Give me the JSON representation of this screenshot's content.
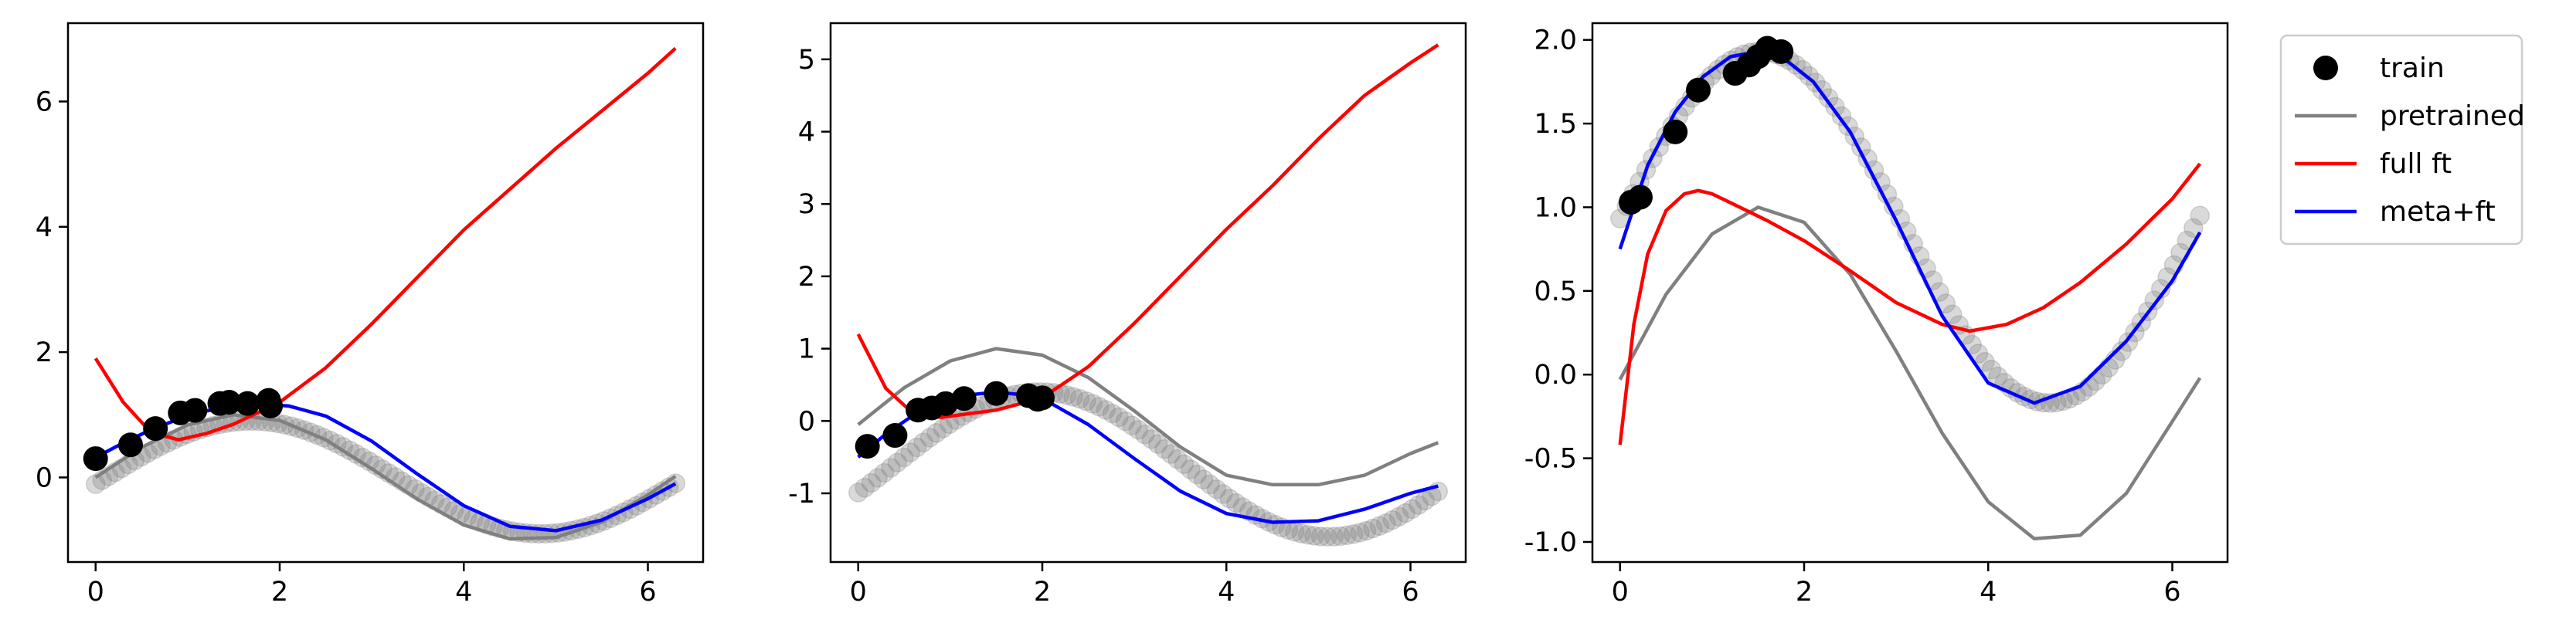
{
  "colors": {
    "train": "#000000",
    "test": "#808080",
    "pretrained": "#808080",
    "full_ft": "#ff0000",
    "meta_ft": "#0000ff"
  },
  "legend": {
    "placement": "outside-right",
    "entries": [
      {
        "label": "train",
        "kind": "marker",
        "color": "#000000"
      },
      {
        "label": "pretrained",
        "kind": "line",
        "color": "#808080"
      },
      {
        "label": "full ft",
        "kind": "line",
        "color": "#ff0000"
      },
      {
        "label": "meta+ft",
        "kind": "line",
        "color": "#0000ff"
      }
    ]
  },
  "chart_data": [
    {
      "type": "line",
      "title": "",
      "xlabel": "",
      "ylabel": "",
      "xlim": [
        -0.3,
        6.6
      ],
      "ylim": [
        -1.35,
        7.25
      ],
      "xticks": [
        0,
        2,
        4,
        6
      ],
      "yticks": [
        0,
        2,
        4,
        6
      ],
      "grid": false,
      "train_points": {
        "x": [
          0.0,
          0.38,
          0.65,
          0.92,
          1.08,
          1.35,
          1.45,
          1.65,
          1.88,
          1.9
        ],
        "y": [
          0.3,
          0.52,
          0.78,
          1.03,
          1.07,
          1.18,
          1.2,
          1.18,
          1.23,
          1.14
        ]
      },
      "test_amplitude": 0.9,
      "test_phase": 0.12,
      "test_offset": 0.0,
      "series": [
        {
          "name": "pretrained",
          "x": [
            0.0,
            0.5,
            1.0,
            1.5,
            2.0,
            2.5,
            3.0,
            3.5,
            4.0,
            4.5,
            5.0,
            5.5,
            6.0,
            6.3
          ],
          "y": [
            0.0,
            0.48,
            0.84,
            1.0,
            0.91,
            0.6,
            0.14,
            -0.35,
            -0.76,
            -0.98,
            -0.96,
            -0.71,
            -0.28,
            0.02
          ]
        },
        {
          "name": "full ft",
          "x": [
            0.0,
            0.3,
            0.6,
            0.9,
            1.2,
            1.5,
            2.0,
            2.5,
            3.0,
            3.5,
            4.0,
            4.5,
            5.0,
            5.5,
            6.0,
            6.3
          ],
          "y": [
            1.9,
            1.2,
            0.72,
            0.6,
            0.7,
            0.85,
            1.2,
            1.75,
            2.45,
            3.2,
            3.95,
            4.6,
            5.25,
            5.85,
            6.45,
            6.85
          ]
        },
        {
          "name": "meta+ft",
          "x": [
            0.0,
            0.3,
            0.6,
            0.9,
            1.2,
            1.5,
            1.8,
            2.1,
            2.5,
            3.0,
            3.5,
            4.0,
            4.5,
            5.0,
            5.5,
            6.0,
            6.3
          ],
          "y": [
            0.32,
            0.55,
            0.76,
            0.93,
            1.06,
            1.14,
            1.17,
            1.14,
            0.98,
            0.58,
            0.05,
            -0.45,
            -0.78,
            -0.85,
            -0.68,
            -0.34,
            -0.1
          ]
        }
      ]
    },
    {
      "type": "line",
      "title": "",
      "xlabel": "",
      "ylabel": "",
      "xlim": [
        -0.3,
        6.6
      ],
      "ylim": [
        -1.95,
        5.5
      ],
      "xticks": [
        0,
        2,
        4,
        6
      ],
      "yticks": [
        -1,
        0,
        1,
        2,
        3,
        4,
        5
      ],
      "grid": false,
      "train_points": {
        "x": [
          0.1,
          0.4,
          0.65,
          0.8,
          0.95,
          1.15,
          1.5,
          1.85,
          1.95,
          2.0
        ],
        "y": [
          -0.35,
          -0.2,
          0.15,
          0.18,
          0.24,
          0.31,
          0.38,
          0.35,
          0.3,
          0.32
        ]
      },
      "test_amplitude": 1.0,
      "test_phase": 0.4,
      "test_offset": -0.6,
      "series": [
        {
          "name": "pretrained",
          "x": [
            0.0,
            0.5,
            1.0,
            1.5,
            2.0,
            2.5,
            3.0,
            3.5,
            4.0,
            4.5,
            5.0,
            5.5,
            6.0,
            6.3
          ],
          "y": [
            -0.05,
            0.46,
            0.83,
            1.0,
            0.91,
            0.6,
            0.14,
            -0.36,
            -0.75,
            -0.88,
            -0.88,
            -0.75,
            -0.45,
            -0.3
          ]
        },
        {
          "name": "full ft",
          "x": [
            0.0,
            0.3,
            0.6,
            0.9,
            1.2,
            1.5,
            2.0,
            2.5,
            3.0,
            3.5,
            4.0,
            4.5,
            5.0,
            5.5,
            6.0,
            6.3
          ],
          "y": [
            1.2,
            0.45,
            0.1,
            0.05,
            0.1,
            0.15,
            0.32,
            0.75,
            1.35,
            2.0,
            2.65,
            3.25,
            3.9,
            4.5,
            4.95,
            5.2
          ]
        },
        {
          "name": "meta+ft",
          "x": [
            0.0,
            0.3,
            0.6,
            0.9,
            1.2,
            1.5,
            1.8,
            2.1,
            2.5,
            3.0,
            3.5,
            4.0,
            4.5,
            5.0,
            5.5,
            6.0,
            6.3
          ],
          "y": [
            -0.5,
            -0.18,
            0.08,
            0.25,
            0.36,
            0.4,
            0.36,
            0.24,
            -0.05,
            -0.52,
            -0.97,
            -1.28,
            -1.4,
            -1.38,
            -1.22,
            -1.0,
            -0.9
          ]
        }
      ]
    },
    {
      "type": "line",
      "title": "",
      "xlabel": "",
      "ylabel": "",
      "xlim": [
        -0.3,
        6.6
      ],
      "ylim": [
        -1.12,
        2.1
      ],
      "xticks": [
        0,
        2,
        4,
        6
      ],
      "yticks": [
        -1.0,
        -0.5,
        0.0,
        0.5,
        1.0,
        1.5,
        2.0
      ],
      "grid": false,
      "train_points": {
        "x": [
          0.12,
          0.22,
          0.6,
          0.85,
          1.25,
          1.4,
          1.5,
          1.6,
          1.75
        ],
        "y": [
          1.03,
          1.06,
          1.45,
          1.7,
          1.8,
          1.85,
          1.9,
          1.95,
          1.93
        ]
      },
      "test_amplitude": 1.05,
      "test_phase": -0.05,
      "test_offset": 0.88,
      "series": [
        {
          "name": "pretrained",
          "x": [
            0.0,
            0.5,
            1.0,
            1.5,
            2.0,
            2.5,
            3.0,
            3.5,
            4.0,
            4.5,
            5.0,
            5.5,
            6.0,
            6.3
          ],
          "y": [
            -0.03,
            0.48,
            0.84,
            1.0,
            0.91,
            0.6,
            0.14,
            -0.35,
            -0.76,
            -0.98,
            -0.96,
            -0.71,
            -0.28,
            -0.02
          ]
        },
        {
          "name": "full ft",
          "x": [
            0.0,
            0.15,
            0.3,
            0.5,
            0.7,
            0.85,
            1.0,
            1.3,
            1.6,
            2.0,
            2.5,
            3.0,
            3.5,
            3.8,
            4.2,
            4.6,
            5.0,
            5.5,
            6.0,
            6.3
          ],
          "y": [
            -0.42,
            0.3,
            0.72,
            0.98,
            1.08,
            1.1,
            1.08,
            1.0,
            0.92,
            0.8,
            0.62,
            0.43,
            0.3,
            0.26,
            0.3,
            0.4,
            0.55,
            0.78,
            1.05,
            1.26
          ]
        },
        {
          "name": "meta+ft",
          "x": [
            0.0,
            0.3,
            0.6,
            0.9,
            1.2,
            1.5,
            1.8,
            2.1,
            2.5,
            3.0,
            3.5,
            4.0,
            4.5,
            5.0,
            5.5,
            6.0,
            6.3
          ],
          "y": [
            0.75,
            1.25,
            1.57,
            1.78,
            1.9,
            1.93,
            1.88,
            1.75,
            1.45,
            0.92,
            0.35,
            -0.05,
            -0.17,
            -0.07,
            0.2,
            0.56,
            0.85
          ]
        }
      ]
    }
  ]
}
